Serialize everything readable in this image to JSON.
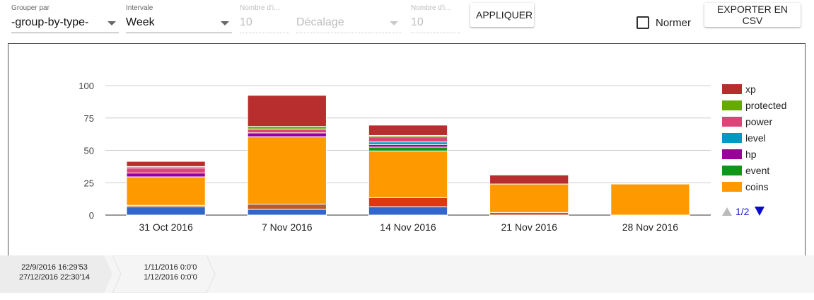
{
  "controls": {
    "group_by": {
      "label": "Grouper par",
      "value": "-group-by-type-"
    },
    "interval": {
      "label": "Intervale",
      "value": "Week"
    },
    "count1": {
      "label": "Nombre d'i...",
      "value": "10"
    },
    "offset": {
      "label": "",
      "placeholder": "Décalage"
    },
    "count2": {
      "label": "Nombre d'i...",
      "value": "10"
    },
    "apply_label": "APPLIQUER",
    "normalize_label": "Normer",
    "export_label": "EXPORTER EN CSV"
  },
  "chart_data": {
    "type": "bar",
    "stacked": true,
    "categories": [
      "31 Oct 2016",
      "7 Nov 2016",
      "14 Nov 2016",
      "21 Nov 2016",
      "28 Nov 2016"
    ],
    "ylim": [
      0,
      100
    ],
    "yticks": [
      0,
      25,
      50,
      75,
      100
    ],
    "grid": true,
    "legend_position": "right",
    "series": [
      {
        "name": "",
        "color": "#3366cc",
        "values": [
          6.5,
          4.5,
          6.5,
          0,
          0
        ]
      },
      {
        "name": "",
        "color": "#dc3912",
        "values": [
          0,
          0,
          7,
          0,
          0
        ]
      },
      {
        "name": "",
        "color": "#b85c2c",
        "values": [
          1,
          4,
          0,
          2,
          0
        ]
      },
      {
        "name": "coins",
        "color": "#ff9900",
        "values": [
          22,
          52,
          36,
          22,
          24
        ]
      },
      {
        "name": "event",
        "color": "#109618",
        "values": [
          0,
          0,
          3,
          0,
          0
        ]
      },
      {
        "name": "hp",
        "color": "#990099",
        "values": [
          3,
          3,
          2,
          0,
          0
        ]
      },
      {
        "name": "level",
        "color": "#0099c6",
        "values": [
          0,
          0,
          2,
          0,
          0
        ]
      },
      {
        "name": "power",
        "color": "#dd4477",
        "values": [
          4,
          3,
          4,
          0,
          0
        ]
      },
      {
        "name": "protected",
        "color": "#66aa00",
        "values": [
          1,
          2,
          1,
          0,
          0
        ]
      },
      {
        "name": "xp",
        "color": "#b82e2e",
        "values": [
          4,
          24,
          8,
          7,
          0
        ]
      }
    ],
    "legend_items": [
      "xp",
      "protected",
      "power",
      "level",
      "hp",
      "event",
      "coins"
    ],
    "legend_pager": "1/2"
  },
  "timeline": [
    {
      "line1": "22/9/2016 16:29'53",
      "line2": "27/12/2016 22:30'14"
    },
    {
      "line1": "1/11/2016 0:0'0",
      "line2": "1/12/2016 0:0'0"
    }
  ]
}
